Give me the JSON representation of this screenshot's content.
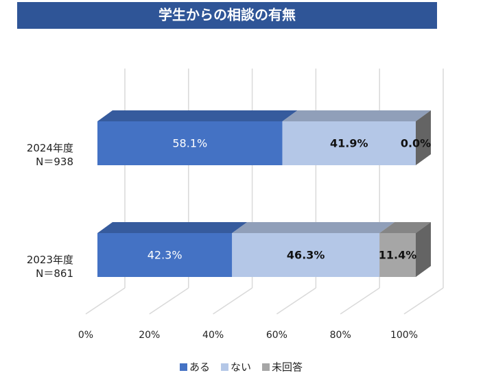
{
  "chart_data": {
    "type": "stacked-bar-3d",
    "orientation": "horizontal",
    "title": "学生からの相談の有無",
    "categories": [
      "2024年度\nN＝938",
      "2023年度\nN＝861"
    ],
    "series": [
      {
        "name": "ある",
        "color": "#4472c4",
        "values": [
          58.1,
          42.3
        ],
        "value_labels": [
          "58.1%",
          "42.3%"
        ]
      },
      {
        "name": "ない",
        "color": "#b4c7e7",
        "values": [
          41.9,
          46.3
        ],
        "value_labels": [
          "41.9%",
          "46.3%"
        ]
      },
      {
        "name": "未回答",
        "color": "#a6a6a6",
        "values": [
          0.0,
          11.4
        ],
        "value_labels": [
          "0.0%",
          "11.4%"
        ]
      }
    ],
    "xlim": [
      0,
      100
    ],
    "xticks": [
      {
        "value": 0,
        "label": "0%"
      },
      {
        "value": 20,
        "label": "20%"
      },
      {
        "value": 40,
        "label": "40%"
      },
      {
        "value": 60,
        "label": "60%"
      },
      {
        "value": 80,
        "label": "80%"
      },
      {
        "value": 100,
        "label": "100%"
      }
    ],
    "grid": true,
    "legend": "bottom"
  }
}
